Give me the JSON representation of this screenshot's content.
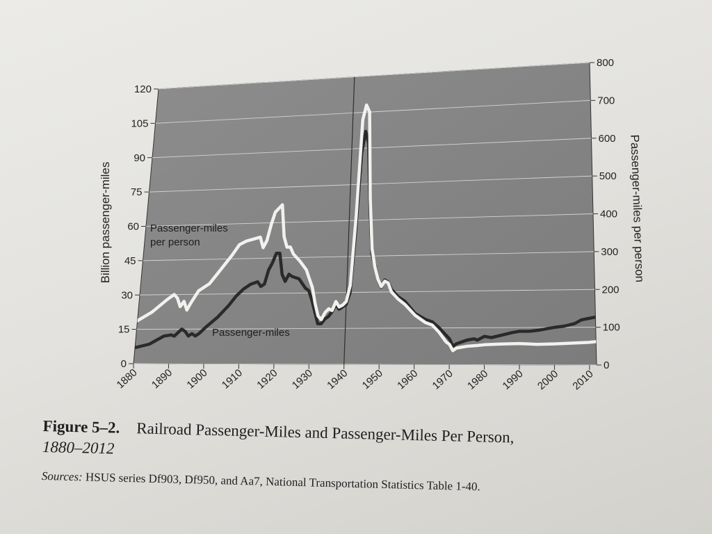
{
  "figure": {
    "label": "Figure 5–2.",
    "title_line1": "Railroad Passenger-Miles and Passenger-Miles Per Person,",
    "title_line2": "1880–2012",
    "sources_label": "Sources:",
    "sources_text": " HSUS series Df903, Df950, and Aa7, National Transportation Statistics Table 1-40."
  },
  "chart_data": {
    "type": "line",
    "left_axis": {
      "label": "Billion passenger-miles",
      "ticks": [
        0,
        15,
        30,
        45,
        60,
        75,
        90,
        105,
        120
      ],
      "range": [
        0,
        120
      ]
    },
    "right_axis": {
      "label": "Passenger-miles per person",
      "ticks": [
        0,
        100,
        200,
        300,
        400,
        500,
        600,
        700,
        800
      ],
      "range": [
        0,
        800
      ]
    },
    "x_axis": {
      "ticks": [
        1880,
        1890,
        1900,
        1910,
        1920,
        1930,
        1940,
        1950,
        1960,
        1970,
        1980,
        1990,
        2000,
        2010
      ],
      "range": [
        1880,
        2012
      ]
    },
    "grid": true,
    "vertical_marker": 1940,
    "annotations": [
      {
        "text": "Passenger-miles",
        "series": "passenger_miles"
      },
      {
        "text": "Passenger-miles per person",
        "lines": [
          "Passenger-miles",
          "per person"
        ],
        "series": "per_person"
      }
    ],
    "series": [
      {
        "key": "passenger_miles",
        "name": "Passenger-miles",
        "axis": "left",
        "color": "#2a2a2a",
        "points": [
          [
            1880,
            7
          ],
          [
            1884,
            8.5
          ],
          [
            1888,
            12
          ],
          [
            1890,
            12.5
          ],
          [
            1891,
            12
          ],
          [
            1892,
            13.5
          ],
          [
            1893,
            15
          ],
          [
            1894,
            14
          ],
          [
            1895,
            12
          ],
          [
            1896,
            13
          ],
          [
            1897,
            12
          ],
          [
            1898,
            13
          ],
          [
            1900,
            16
          ],
          [
            1903,
            20
          ],
          [
            1906,
            25
          ],
          [
            1908,
            29
          ],
          [
            1910,
            32
          ],
          [
            1912,
            34
          ],
          [
            1914,
            35
          ],
          [
            1915,
            33
          ],
          [
            1916,
            34
          ],
          [
            1917,
            40
          ],
          [
            1918,
            43
          ],
          [
            1919,
            47
          ],
          [
            1920,
            47
          ],
          [
            1921,
            38
          ],
          [
            1922,
            35
          ],
          [
            1923,
            38
          ],
          [
            1924,
            37
          ],
          [
            1926,
            36
          ],
          [
            1928,
            32
          ],
          [
            1929,
            31
          ],
          [
            1930,
            27
          ],
          [
            1931,
            22
          ],
          [
            1932,
            17
          ],
          [
            1933,
            17
          ],
          [
            1934,
            19
          ],
          [
            1935,
            20
          ],
          [
            1936,
            22
          ],
          [
            1937,
            25
          ],
          [
            1938,
            23
          ],
          [
            1939,
            24
          ],
          [
            1940,
            25
          ],
          [
            1941,
            30
          ],
          [
            1942,
            55
          ],
          [
            1943,
            88
          ],
          [
            1944,
            97
          ],
          [
            1945,
            92
          ],
          [
            1946,
            66
          ],
          [
            1947,
            46
          ],
          [
            1948,
            41
          ],
          [
            1949,
            35
          ],
          [
            1950,
            32
          ],
          [
            1951,
            35
          ],
          [
            1952,
            34
          ],
          [
            1953,
            31
          ],
          [
            1955,
            28
          ],
          [
            1957,
            26
          ],
          [
            1960,
            21
          ],
          [
            1963,
            18.5
          ],
          [
            1965,
            17.5
          ],
          [
            1967,
            15
          ],
          [
            1969,
            12
          ],
          [
            1970,
            10.5
          ],
          [
            1971,
            7.5
          ],
          [
            1972,
            8.5
          ],
          [
            1975,
            10
          ],
          [
            1977,
            10.5
          ],
          [
            1978,
            10
          ],
          [
            1980,
            11.5
          ],
          [
            1982,
            11
          ],
          [
            1985,
            12
          ],
          [
            1988,
            13
          ],
          [
            1990,
            13.5
          ],
          [
            1993,
            13.5
          ],
          [
            1996,
            14
          ],
          [
            2000,
            15
          ],
          [
            2003,
            15.5
          ],
          [
            2006,
            16.5
          ],
          [
            2008,
            18
          ],
          [
            2010,
            18.5
          ],
          [
            2012,
            19
          ]
        ]
      },
      {
        "key": "per_person",
        "name": "Passenger-miles per person",
        "axis": "right",
        "color": "#f1f1ee",
        "points": [
          [
            1880,
            125
          ],
          [
            1884,
            150
          ],
          [
            1888,
            185
          ],
          [
            1890,
            200
          ],
          [
            1891,
            190
          ],
          [
            1892,
            165
          ],
          [
            1893,
            180
          ],
          [
            1894,
            155
          ],
          [
            1895,
            175
          ],
          [
            1897,
            210
          ],
          [
            1900,
            230
          ],
          [
            1903,
            270
          ],
          [
            1906,
            310
          ],
          [
            1908,
            340
          ],
          [
            1910,
            350
          ],
          [
            1912,
            355
          ],
          [
            1914,
            360
          ],
          [
            1915,
            330
          ],
          [
            1916,
            350
          ],
          [
            1917,
            395
          ],
          [
            1918,
            430
          ],
          [
            1919,
            440
          ],
          [
            1920,
            450
          ],
          [
            1921,
            360
          ],
          [
            1922,
            330
          ],
          [
            1923,
            330
          ],
          [
            1924,
            310
          ],
          [
            1926,
            290
          ],
          [
            1928,
            265
          ],
          [
            1929,
            240
          ],
          [
            1930,
            215
          ],
          [
            1931,
            170
          ],
          [
            1932,
            135
          ],
          [
            1933,
            125
          ],
          [
            1934,
            145
          ],
          [
            1935,
            155
          ],
          [
            1936,
            150
          ],
          [
            1937,
            175
          ],
          [
            1938,
            160
          ],
          [
            1939,
            165
          ],
          [
            1940,
            175
          ],
          [
            1941,
            220
          ],
          [
            1942,
            410
          ],
          [
            1943,
            680
          ],
          [
            1944,
            720
          ],
          [
            1945,
            700
          ],
          [
            1946,
            460
          ],
          [
            1947,
            320
          ],
          [
            1948,
            270
          ],
          [
            1949,
            235
          ],
          [
            1950,
            215
          ],
          [
            1951,
            230
          ],
          [
            1952,
            225
          ],
          [
            1953,
            200
          ],
          [
            1955,
            180
          ],
          [
            1957,
            165
          ],
          [
            1960,
            135
          ],
          [
            1963,
            115
          ],
          [
            1965,
            108
          ],
          [
            1967,
            88
          ],
          [
            1969,
            62
          ],
          [
            1970,
            55
          ],
          [
            1971,
            38
          ],
          [
            1972,
            45
          ],
          [
            1975,
            50
          ],
          [
            1978,
            52
          ],
          [
            1980,
            54
          ],
          [
            1985,
            56
          ],
          [
            1990,
            57
          ],
          [
            1995,
            55
          ],
          [
            2000,
            56
          ],
          [
            2005,
            58
          ],
          [
            2010,
            60
          ],
          [
            2012,
            62
          ]
        ]
      }
    ]
  }
}
